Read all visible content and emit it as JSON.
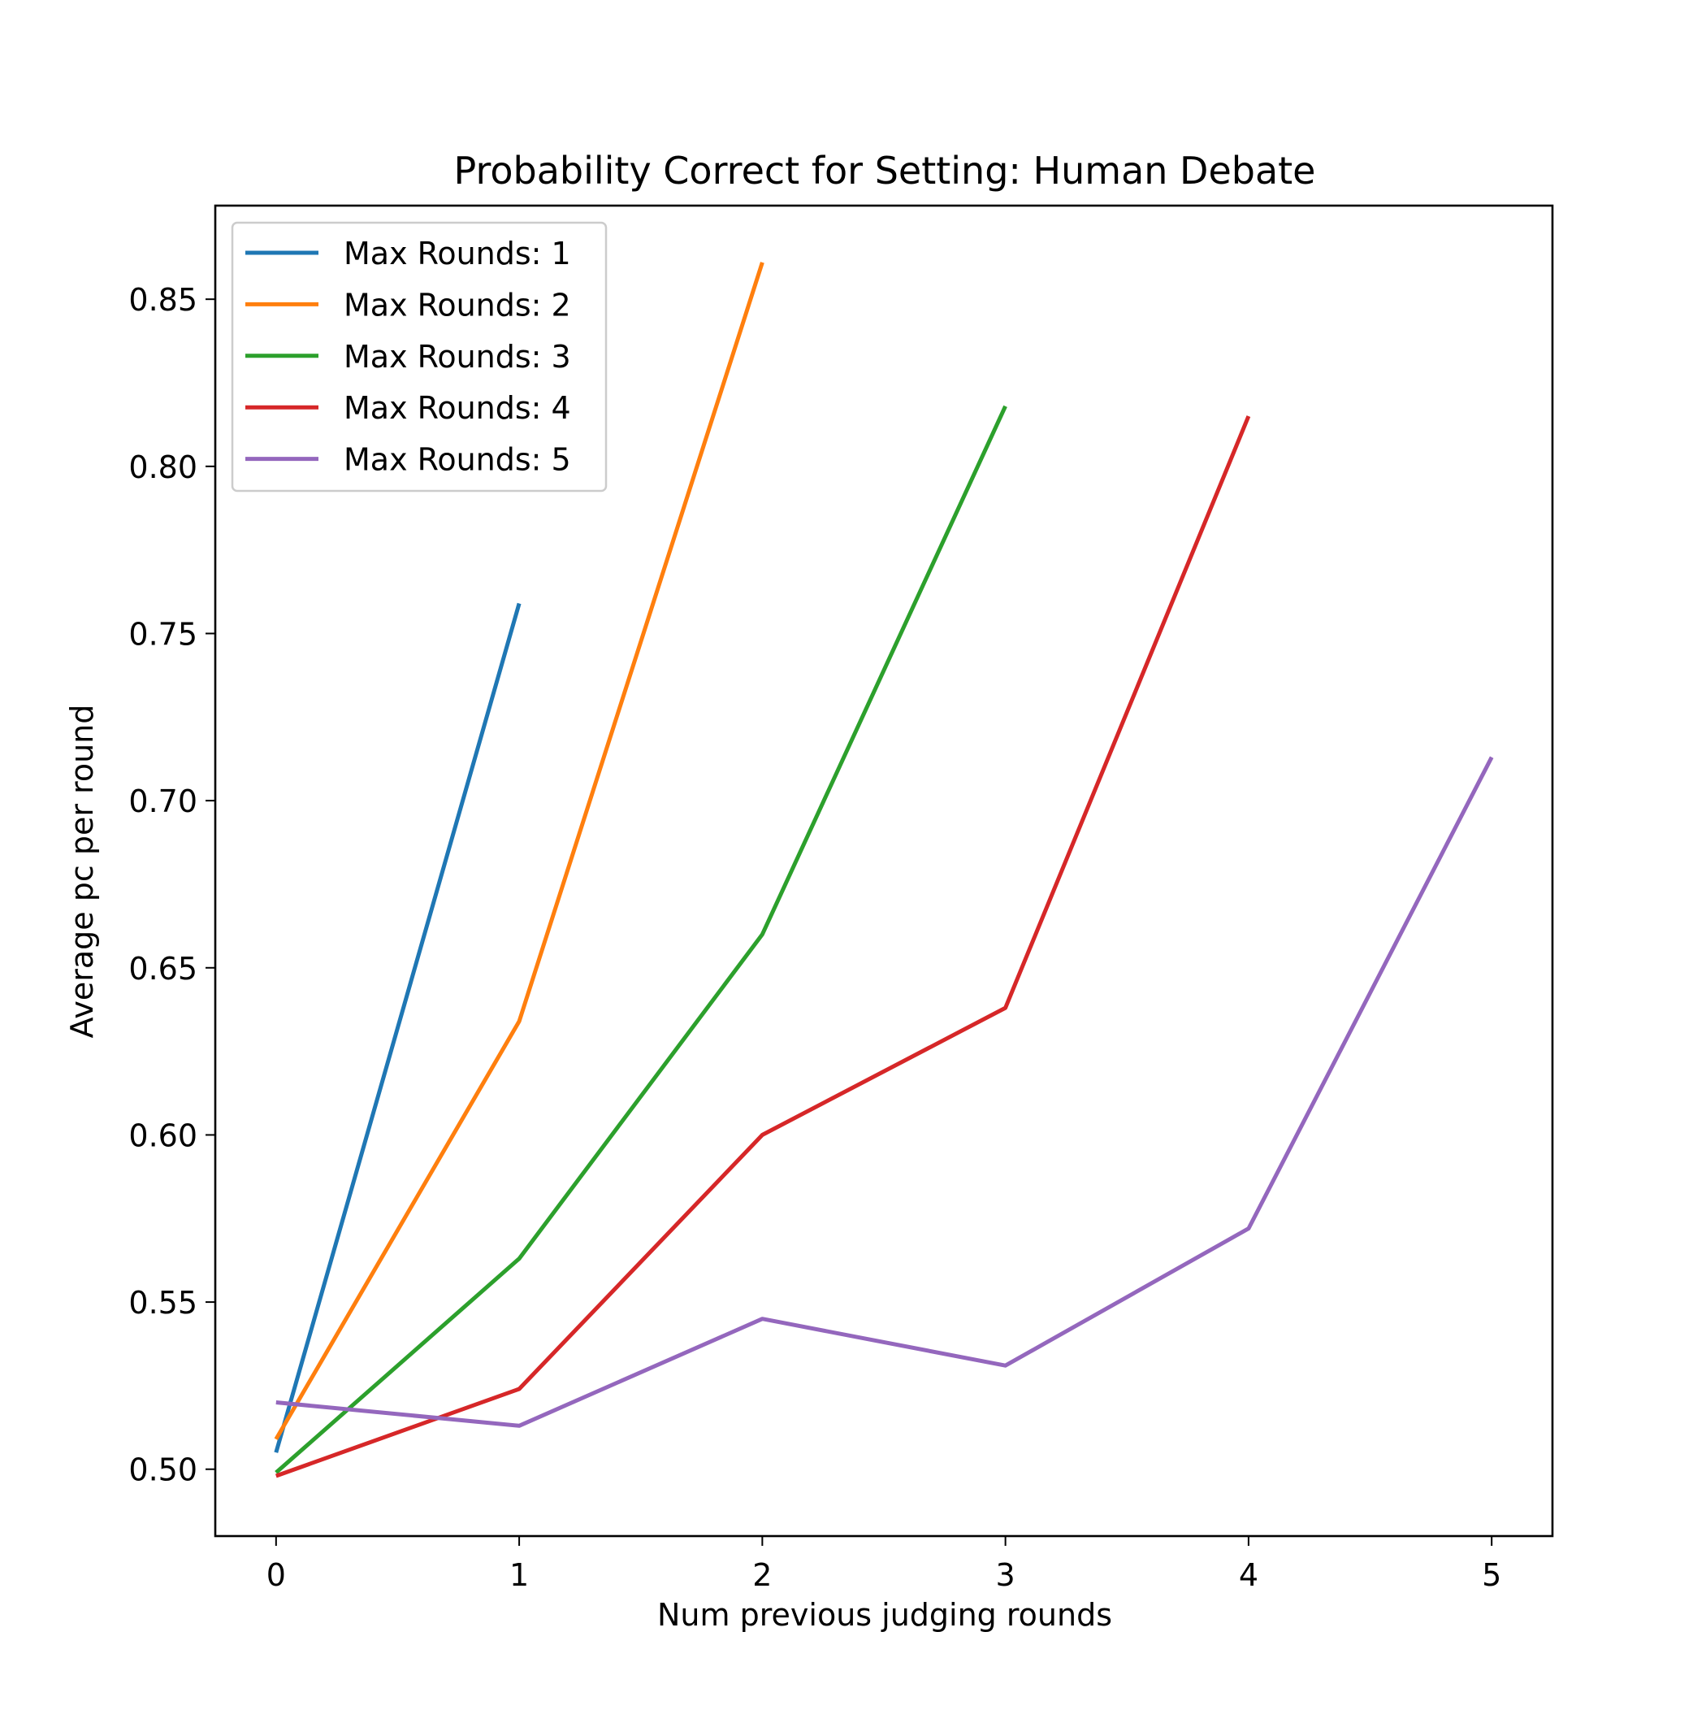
{
  "chart_data": {
    "type": "line",
    "title": "Probability Correct for Setting: Human Debate",
    "xlabel": "Num previous judging rounds",
    "ylabel": "Average pc per round",
    "xlim": [
      -0.25,
      5.25
    ],
    "ylim": [
      0.48,
      0.878
    ],
    "x_ticks": [
      0,
      1,
      2,
      3,
      4,
      5
    ],
    "x_tick_labels": [
      "0",
      "1",
      "2",
      "3",
      "4",
      "5"
    ],
    "y_ticks": [
      0.5,
      0.55,
      0.6,
      0.65,
      0.7,
      0.75,
      0.8,
      0.85
    ],
    "y_tick_labels": [
      "0.50",
      "0.55",
      "0.60",
      "0.65",
      "0.70",
      "0.75",
      "0.80",
      "0.85"
    ],
    "grid": false,
    "legend_position": "upper-left",
    "series": [
      {
        "name": "Max Rounds: 1",
        "color": "#1f77b4",
        "x": [
          0,
          1
        ],
        "values": [
          0.505,
          0.759
        ]
      },
      {
        "name": "Max Rounds: 2",
        "color": "#ff7f0e",
        "x": [
          0,
          1,
          2
        ],
        "values": [
          0.509,
          0.634,
          0.861
        ]
      },
      {
        "name": "Max Rounds: 3",
        "color": "#2ca02c",
        "x": [
          0,
          1,
          2,
          3
        ],
        "values": [
          0.499,
          0.563,
          0.66,
          0.818
        ]
      },
      {
        "name": "Max Rounds: 4",
        "color": "#d62728",
        "x": [
          0,
          1,
          2,
          3,
          4
        ],
        "values": [
          0.498,
          0.524,
          0.6,
          0.638,
          0.815
        ]
      },
      {
        "name": "Max Rounds: 5",
        "color": "#9467bd",
        "x": [
          0,
          1,
          2,
          3,
          4,
          5
        ],
        "values": [
          0.52,
          0.513,
          0.545,
          0.531,
          0.572,
          0.713
        ]
      }
    ]
  }
}
